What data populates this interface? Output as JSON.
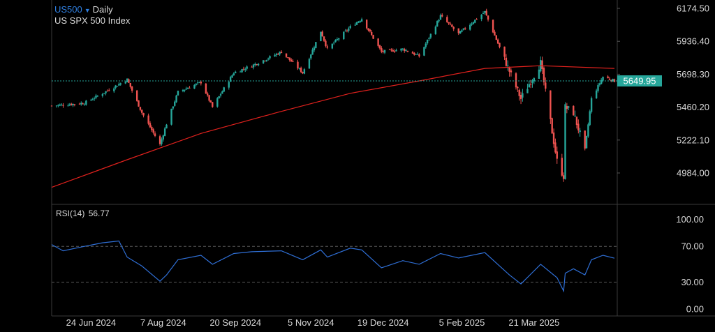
{
  "header": {
    "symbol": "US500",
    "timeframe": "Daily",
    "instrument_name": "US SPX 500 Index"
  },
  "indicator": {
    "name": "RSI(14)",
    "value": "56.77"
  },
  "colors": {
    "background": "#000000",
    "up_candle": "#26a69a",
    "down_candle": "#ef5350",
    "moving_average": "#e0211d",
    "rsi_line": "#2f6fd6",
    "last_price_label": "#26a69a",
    "symbol": "#2f7fe0",
    "text": "#d9d9d9"
  },
  "chart_data": [
    {
      "type": "candlestick",
      "title": "US500 Daily",
      "subtitle": "US SPX 500 Index",
      "x_tick_labels": [
        "24 Jun 2024",
        "7 Aug 2024",
        "20 Sep 2024",
        "5 Nov 2024",
        "19 Dec 2024",
        "5 Feb 2025",
        "21 Mar 2025"
      ],
      "y_tick_labels": [
        "6174.50",
        "5936.40",
        "5698.30",
        "5460.20",
        "5222.10",
        "4984.00"
      ],
      "ylim": [
        4870,
        6220
      ],
      "last_price": 5649.95,
      "last_price_label": "5649.95",
      "grid": true,
      "ohlc_close_path": {
        "x": [
          "2024-05-31",
          "2024-06-20",
          "2024-07-01",
          "2024-07-16",
          "2024-07-25",
          "2024-08-05",
          "2024-08-09",
          "2024-08-16",
          "2024-08-30",
          "2024-09-06",
          "2024-09-19",
          "2024-09-30",
          "2024-10-18",
          "2024-10-31",
          "2024-11-11",
          "2024-11-15",
          "2024-11-29",
          "2024-12-06",
          "2024-12-18",
          "2024-12-31",
          "2025-01-10",
          "2025-01-23",
          "2025-02-03",
          "2025-02-19",
          "2025-03-06",
          "2025-03-13",
          "2025-03-25",
          "2025-04-04",
          "2025-04-08",
          "2025-04-09",
          "2025-04-14",
          "2025-04-21",
          "2025-04-25",
          "2025-05-02",
          "2025-05-09"
        ],
        "close": [
          5470,
          5490,
          5560,
          5660,
          5420,
          5190,
          5340,
          5570,
          5640,
          5460,
          5710,
          5760,
          5860,
          5710,
          6010,
          5880,
          6040,
          6100,
          5860,
          5880,
          5830,
          6120,
          5990,
          6150,
          5720,
          5520,
          5780,
          5070,
          4960,
          5460,
          5420,
          5150,
          5520,
          5680,
          5650
        ]
      },
      "series": [
        {
          "name": "moving average",
          "color": "#e0211d",
          "x": [
            "2024-05-31",
            "2024-07-16",
            "2024-08-30",
            "2024-10-15",
            "2024-11-29",
            "2025-01-10",
            "2025-02-19",
            "2025-03-25",
            "2025-05-09"
          ],
          "y": [
            4880,
            5080,
            5270,
            5420,
            5560,
            5650,
            5740,
            5760,
            5740
          ]
        }
      ]
    },
    {
      "type": "line",
      "title": "RSI(14)",
      "value_label": "56.77",
      "y_tick_labels": [
        "100.00",
        "70.00",
        "30.00",
        "0.00"
      ],
      "ylim": [
        0,
        100
      ],
      "reference_lines": [
        70,
        30
      ],
      "grid": true,
      "series": [
        {
          "name": "RSI(14)",
          "color": "#2f6fd6",
          "x": [
            "2024-05-31",
            "2024-06-07",
            "2024-06-20",
            "2024-07-01",
            "2024-07-11",
            "2024-07-16",
            "2024-07-25",
            "2024-08-05",
            "2024-08-09",
            "2024-08-16",
            "2024-08-30",
            "2024-09-06",
            "2024-09-19",
            "2024-09-30",
            "2024-10-18",
            "2024-10-31",
            "2024-11-11",
            "2024-11-15",
            "2024-11-29",
            "2024-12-06",
            "2024-12-18",
            "2024-12-31",
            "2025-01-10",
            "2025-01-23",
            "2025-02-03",
            "2025-02-19",
            "2025-03-06",
            "2025-03-13",
            "2025-03-25",
            "2025-04-04",
            "2025-04-08",
            "2025-04-09",
            "2025-04-14",
            "2025-04-21",
            "2025-04-25",
            "2025-05-02",
            "2025-05-09"
          ],
          "y": [
            72,
            65,
            70,
            74,
            76,
            58,
            48,
            31,
            38,
            55,
            60,
            50,
            62,
            64,
            65,
            55,
            66,
            58,
            68,
            66,
            46,
            54,
            50,
            62,
            57,
            63,
            38,
            28,
            50,
            35,
            20,
            40,
            45,
            38,
            55,
            60,
            56.77
          ]
        }
      ]
    }
  ]
}
